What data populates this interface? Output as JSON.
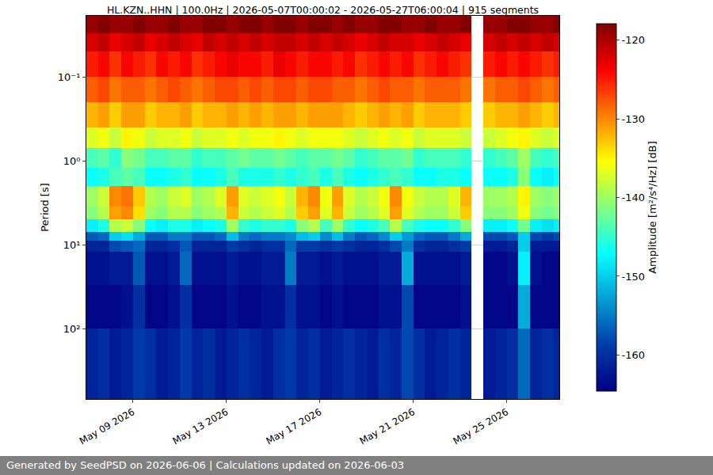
{
  "chart_data": {
    "type": "heatmap",
    "title": "HL.KZN..HHN | 100.0Hz | 2026-05-07T00:00:02 - 2026-05-27T06:00:04 | 915 segments",
    "y_label": "Period [s]",
    "footer": "Generated by SeedPSD on 2026-06-06 | Calculations updated on 2026-06-03",
    "log": "y",
    "grid": true,
    "color": "Jet",
    "x": [
      "2026-05-07 00:00",
      "2026-05-07 12:00",
      "2026-05-08 00:00",
      "2026-05-08 12:00",
      "2026-05-09 00:00",
      "2026-05-09 12:00",
      "2026-05-10 00:00",
      "2026-05-10 12:00",
      "2026-05-11 00:00",
      "2026-05-11 12:00",
      "2026-05-12 00:00",
      "2026-05-12 12:00",
      "2026-05-13 00:00",
      "2026-05-13 12:00",
      "2026-05-14 00:00",
      "2026-05-14 12:00",
      "2026-05-15 00:00",
      "2026-05-15 12:00",
      "2026-05-16 00:00",
      "2026-05-16 12:00",
      "2026-05-17 00:00",
      "2026-05-17 12:00",
      "2026-05-18 00:00",
      "2026-05-18 12:00",
      "2026-05-19 00:00",
      "2026-05-19 12:00",
      "2026-05-20 00:00",
      "2026-05-20 12:00",
      "2026-05-21 00:00",
      "2026-05-21 12:00",
      "2026-05-22 00:00",
      "2026-05-22 12:00",
      "2026-05-23 00:00",
      "2026-05-23 12:00",
      "2026-05-24 00:00",
      "2026-05-24 12:00",
      "2026-05-25 00:00",
      "2026-05-25 12:00",
      "2026-05-26 00:00",
      "2026-05-26 12:00",
      "2026-05-27 00:00",
      "2026-05-27 06:00"
    ],
    "y": [
      0.0187,
      0.03,
      0.05,
      0.1,
      0.2,
      0.4,
      0.7,
      1.2,
      2,
      3.5,
      5,
      7,
      9,
      12,
      30,
      100,
      690
    ],
    "z": [
      [
        -119,
        -118,
        -119,
        -119,
        -118,
        -119,
        -119,
        -118,
        -119,
        -119,
        -118,
        -118,
        -119,
        -118,
        -118,
        -119,
        -118,
        -118,
        -119,
        -118,
        -118,
        -119,
        -118,
        -119,
        -119,
        -118,
        -118,
        -119,
        -119,
        -118,
        -119,
        -119,
        -118,
        null,
        -119,
        -119,
        -118,
        -118,
        -119,
        -119,
        -118
      ],
      [
        -122,
        -121,
        -123,
        -122,
        -121,
        -123,
        -122,
        -121,
        -122,
        -123,
        -121,
        -122,
        -121,
        -122,
        -121,
        -122,
        -121,
        -121,
        -122,
        -121,
        -122,
        -121,
        -122,
        -123,
        -122,
        -121,
        -122,
        -122,
        -123,
        -122,
        -121,
        -122,
        -123,
        null,
        -122,
        -121,
        -122,
        -121,
        -122,
        -121,
        -122
      ],
      [
        -125,
        -124,
        -126,
        -124,
        -125,
        -126,
        -124,
        -125,
        -124,
        -126,
        -125,
        -124,
        -123,
        -124,
        -124,
        -125,
        -123,
        -124,
        -125,
        -124,
        -124,
        -125,
        -124,
        -126,
        -125,
        -124,
        -125,
        -124,
        -126,
        -125,
        -124,
        -125,
        -126,
        null,
        -125,
        -124,
        -125,
        -124,
        -125,
        -126,
        -125
      ],
      [
        -128,
        -127,
        -129,
        -128,
        -128,
        -129,
        -128,
        -127,
        -128,
        -129,
        -128,
        -127,
        -127,
        -128,
        -127,
        -128,
        -127,
        -127,
        -128,
        -127,
        -127,
        -128,
        -128,
        -129,
        -128,
        -127,
        -128,
        -128,
        -129,
        -128,
        -128,
        -128,
        -129,
        null,
        -129,
        -128,
        -128,
        -127,
        -128,
        -129,
        -128
      ],
      [
        -132,
        -131,
        -133,
        -131,
        -131,
        -133,
        -132,
        -132,
        -131,
        -133,
        -132,
        -132,
        -131,
        -132,
        -131,
        -132,
        -131,
        -131,
        -132,
        -131,
        -131,
        -131,
        -132,
        -133,
        -132,
        -131,
        -132,
        -131,
        -133,
        -132,
        -132,
        -132,
        -133,
        null,
        -133,
        -132,
        -132,
        -131,
        -132,
        -133,
        -132
      ],
      [
        -137,
        -136,
        -138,
        -135,
        -136,
        -138,
        -137,
        -137,
        -136,
        -138,
        -137,
        -137,
        -136,
        -137,
        -136,
        -136,
        -135,
        -136,
        -137,
        -136,
        -136,
        -136,
        -137,
        -138,
        -137,
        -136,
        -137,
        -136,
        -138,
        -137,
        -137,
        -137,
        -138,
        null,
        -138,
        -137,
        -136,
        -135,
        -137,
        -138,
        -137
      ],
      [
        -144,
        -143,
        -145,
        -141,
        -142,
        -144,
        -144,
        -143,
        -143,
        -145,
        -144,
        -144,
        -143,
        -142,
        -143,
        -143,
        -142,
        -143,
        -144,
        -143,
        -143,
        -142,
        -143,
        -145,
        -144,
        -143,
        -143,
        -142,
        -145,
        -144,
        -144,
        -144,
        -145,
        null,
        -145,
        -144,
        -143,
        -140,
        -144,
        -145,
        -144
      ],
      [
        -147,
        -146,
        -144,
        -143,
        -144,
        -147,
        -147,
        -146,
        -145,
        -147,
        -147,
        -146,
        -144,
        -146,
        -146,
        -146,
        -145,
        -146,
        -145,
        -144,
        -146,
        -144,
        -146,
        -147,
        -146,
        -145,
        -144,
        -145,
        -147,
        -147,
        -146,
        -146,
        -147,
        null,
        -147,
        -147,
        -146,
        -141,
        -147,
        -148,
        -147
      ],
      [
        -140,
        -138,
        -130,
        -129,
        -133,
        -139,
        -140,
        -138,
        -137,
        -140,
        -139,
        -137,
        -131,
        -137,
        -138,
        -137,
        -136,
        -138,
        -132,
        -130,
        -136,
        -131,
        -137,
        -139,
        -138,
        -136,
        -130,
        -136,
        -138,
        -139,
        -139,
        -137,
        -132,
        null,
        -140,
        -140,
        -139,
        -135,
        -140,
        -141,
        -140
      ],
      [
        -141,
        -139,
        -131,
        -130,
        -134,
        -140,
        -141,
        -139,
        -139,
        -141,
        -140,
        -139,
        -132,
        -138,
        -139,
        -138,
        -137,
        -139,
        -133,
        -131,
        -137,
        -132,
        -138,
        -140,
        -139,
        -137,
        -131,
        -137,
        -139,
        -140,
        -140,
        -138,
        -133,
        null,
        -141,
        -141,
        -140,
        -136,
        -141,
        -142,
        -141
      ],
      [
        -148,
        -146,
        -139,
        -138,
        -141,
        -147,
        -148,
        -146,
        -146,
        -148,
        -147,
        -146,
        -140,
        -145,
        -146,
        -145,
        -145,
        -146,
        -141,
        -139,
        -144,
        -140,
        -145,
        -147,
        -146,
        -144,
        -139,
        -144,
        -146,
        -147,
        -147,
        -145,
        -141,
        null,
        -148,
        -148,
        -147,
        -142,
        -148,
        -149,
        -148
      ],
      [
        -157,
        -156,
        -150,
        -149,
        -152,
        -157,
        -157,
        -155,
        -155,
        -157,
        -157,
        -156,
        -151,
        -155,
        -156,
        -155,
        -155,
        -154,
        -151,
        -150,
        -154,
        -151,
        -155,
        -157,
        -156,
        -154,
        -150,
        -153,
        -156,
        -157,
        -157,
        -155,
        -152,
        null,
        -158,
        -158,
        -157,
        -150,
        -158,
        -159,
        -158
      ],
      [
        -161,
        -161,
        -158,
        -157,
        -156,
        -161,
        -161,
        -160,
        -157,
        -161,
        -161,
        -161,
        -159,
        -160,
        -161,
        -160,
        -160,
        -156,
        -159,
        -159,
        -160,
        -159,
        -160,
        -161,
        -161,
        -160,
        -158,
        -155,
        -160,
        -161,
        -161,
        -160,
        -159,
        null,
        -162,
        -162,
        -161,
        -150,
        -162,
        -162,
        -162
      ],
      [
        -163,
        -163,
        -162,
        -162,
        -157,
        -163,
        -163,
        -162,
        -156,
        -163,
        -163,
        -163,
        -162,
        -163,
        -163,
        -162,
        -162,
        -155,
        -162,
        -162,
        -163,
        -162,
        -163,
        -163,
        -163,
        -162,
        -162,
        -152,
        -163,
        -163,
        -163,
        -163,
        -162,
        null,
        -164,
        -164,
        -163,
        -148,
        -163,
        -164,
        -164
      ],
      [
        -164,
        -164,
        -164,
        -163,
        -160,
        -164,
        -164,
        -163,
        -160,
        -164,
        -164,
        -164,
        -163,
        -164,
        -164,
        -163,
        -163,
        -160,
        -163,
        -163,
        -164,
        -163,
        -164,
        -164,
        -164,
        -163,
        -163,
        -158,
        -164,
        -164,
        -164,
        -164,
        -163,
        null,
        -164,
        -164,
        -164,
        -152,
        -164,
        -164,
        -164
      ],
      [
        -161,
        -160,
        -162,
        -161,
        -159,
        -160,
        -162,
        -161,
        -159,
        -161,
        -160,
        -162,
        -161,
        -160,
        -161,
        -162,
        -160,
        -159,
        -161,
        -160,
        -162,
        -161,
        -160,
        -161,
        -162,
        -160,
        -161,
        -158,
        -160,
        -162,
        -161,
        -160,
        -161,
        null,
        -162,
        -161,
        -160,
        -156,
        -161,
        -160,
        -161
      ]
    ],
    "xlim": [
      "2026-05-07 00:00",
      "2026-05-27 06:00"
    ],
    "xticks": [
      {
        "value": "2026-05-09",
        "label": "May 09 2026"
      },
      {
        "value": "2026-05-13",
        "label": "May 13 2026"
      },
      {
        "value": "2026-05-17",
        "label": "May 17 2026"
      },
      {
        "value": "2026-05-21",
        "label": "May 21 2026"
      },
      {
        "value": "2026-05-25",
        "label": "May 25 2026"
      }
    ],
    "ylim": [
      690,
      0.0187
    ],
    "yticks": [
      {
        "value": 0.1,
        "label": "10⁻¹"
      },
      {
        "value": 1,
        "label": "10⁰"
      },
      {
        "value": 10,
        "label": "10¹"
      },
      {
        "value": 100,
        "label": "10²"
      }
    ],
    "colorbar": {
      "title": "Amplitude [m²/s⁴/Hz] [dB]",
      "range": [
        -164.6,
        -117.9
      ],
      "ticks": [
        -160,
        -150,
        -140,
        -130,
        -120
      ]
    }
  }
}
